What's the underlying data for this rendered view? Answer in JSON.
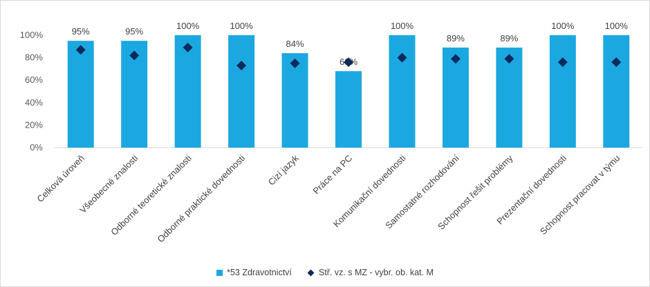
{
  "chart_data": {
    "type": "bar",
    "categories": [
      "Celková úroveň",
      "Všeobecné znalosti",
      "Odborné teoretické znalosti",
      "Odborné praktické dovednosti",
      "Cizí jazyk",
      "Práce na PC",
      "Komunikační dovednosti",
      "Samostatné rozhodování",
      "Schopnost řešit problémy",
      "Prezentační dovednosti",
      "Schopnost pracovat v týmu"
    ],
    "series": [
      {
        "name": "*53 Zdravotnictví",
        "type": "bar",
        "color": "#1ba8e0",
        "values": [
          95,
          95,
          100,
          100,
          84,
          68,
          100,
          89,
          89,
          100,
          100
        ],
        "data_labels": [
          "95%",
          "95%",
          "100%",
          "100%",
          "84%",
          "68%",
          "100%",
          "89%",
          "89%",
          "100%",
          "100%"
        ]
      },
      {
        "name": "Stř. vz. s MZ - vybr. ob. kat. M",
        "type": "scatter",
        "marker": "diamond",
        "color": "#0d2a5c",
        "values": [
          87,
          82,
          89,
          73,
          75,
          76,
          80,
          79,
          79,
          76,
          76
        ]
      }
    ],
    "yticks": [
      "0%",
      "20%",
      "40%",
      "60%",
      "80%",
      "100%"
    ],
    "ylim": [
      0,
      100
    ],
    "grid": false,
    "legend": "bottom"
  }
}
